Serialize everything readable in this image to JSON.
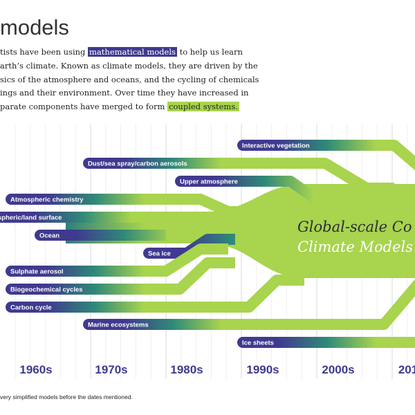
{
  "header": {
    "title": "models"
  },
  "intro": {
    "lines": [
      [
        "tists have been using ",
        "mathematical models",
        " to help us learn"
      ],
      [
        "arth’s climate. Known as climate models, they are driven by the"
      ],
      [
        "sics of the atmosphere and oceans, and the cycling of chemicals"
      ],
      [
        "ings and their environment. Over time they have increased in"
      ],
      [
        "parate components have merged to form ",
        "coupled systems."
      ]
    ]
  },
  "components": [
    "Interactive vegetation",
    "Dust/sea spray/carbon aerosols",
    "Upper atmosphere",
    "Atmospheric chemistry",
    "spheric/land surface",
    "Ocean",
    "Sea ice",
    "Sulphate aerosol",
    "Biogeochemical cycles",
    "Carbon cycle",
    "Marine ecosystems",
    "Ice sheets"
  ],
  "decades": [
    "1960s",
    "1970s",
    "1980s",
    "1990s",
    "2000s",
    "201"
  ],
  "center": {
    "line1": "Global-scale Co",
    "line2": "Climate Models"
  },
  "footnote": "very simplified models before the dates mentioned."
}
